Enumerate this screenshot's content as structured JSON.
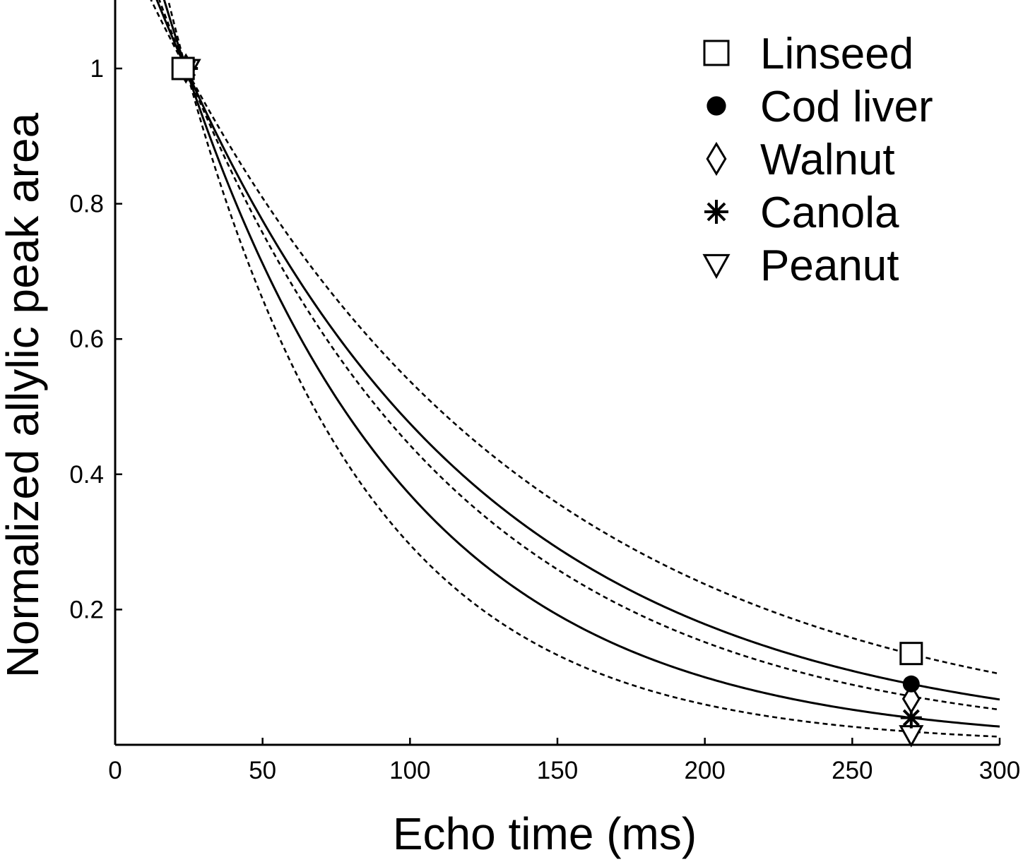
{
  "chart_data": {
    "type": "scatter",
    "title": "",
    "xlabel": "Echo time (ms)",
    "ylabel": "Normalized allylic peak area",
    "xlim": [
      0,
      300
    ],
    "ylim": [
      0,
      1.1
    ],
    "x_ticks": [
      0,
      50,
      100,
      150,
      200,
      250,
      300
    ],
    "x_tick_labels": [
      "0",
      "50",
      "100",
      "150",
      "200",
      "250",
      "300"
    ],
    "y_ticks": [
      0.2,
      0.4,
      0.6,
      0.8,
      1
    ],
    "y_tick_labels": [
      "0.2",
      "0.4",
      "0.6",
      "0.8",
      "1"
    ],
    "legend_position": "top-right",
    "series": [
      {
        "name": "Linseed",
        "marker": "open-square",
        "x": [
          24,
          270
        ],
        "y": [
          1.0,
          0.135
        ]
      },
      {
        "name": "Cod liver",
        "marker": "filled-circle",
        "x": [
          24,
          270
        ],
        "y": [
          1.0,
          0.09
        ]
      },
      {
        "name": "Walnut",
        "marker": "open-diamond",
        "x": [
          24,
          270
        ],
        "y": [
          1.0,
          0.068
        ]
      },
      {
        "name": "Canola",
        "marker": "asterisk",
        "x": [
          24,
          270
        ],
        "y": [
          1.0,
          0.04
        ]
      },
      {
        "name": "Peanut",
        "marker": "open-down-triangle",
        "x": [
          24,
          270
        ],
        "y": [
          1.0,
          0.015
        ]
      }
    ],
    "fit_curves": [
      {
        "name": "fit-upper-solid",
        "style": "solid",
        "model": "exponential",
        "anchor_x": 24,
        "anchor_y": 1.0,
        "point_x": 300,
        "point_y": 0.067
      },
      {
        "name": "fit-lower-solid",
        "style": "solid",
        "model": "exponential",
        "anchor_x": 24,
        "anchor_y": 1.0,
        "point_x": 300,
        "point_y": 0.027
      },
      {
        "name": "fit-outer-dashed-top",
        "style": "dashed",
        "model": "exponential",
        "anchor_x": 24,
        "anchor_y": 1.0,
        "point_x": 300,
        "point_y": 0.105
      },
      {
        "name": "fit-inner-dashed-upper",
        "style": "dashed",
        "model": "exponential",
        "anchor_x": 24,
        "anchor_y": 1.0,
        "point_x": 300,
        "point_y": 0.052
      },
      {
        "name": "fit-inner-dashed-lower",
        "style": "dashed",
        "model": "exponential",
        "anchor_x": 24,
        "anchor_y": 1.0,
        "point_x": 300,
        "point_y": 0.012
      }
    ]
  }
}
